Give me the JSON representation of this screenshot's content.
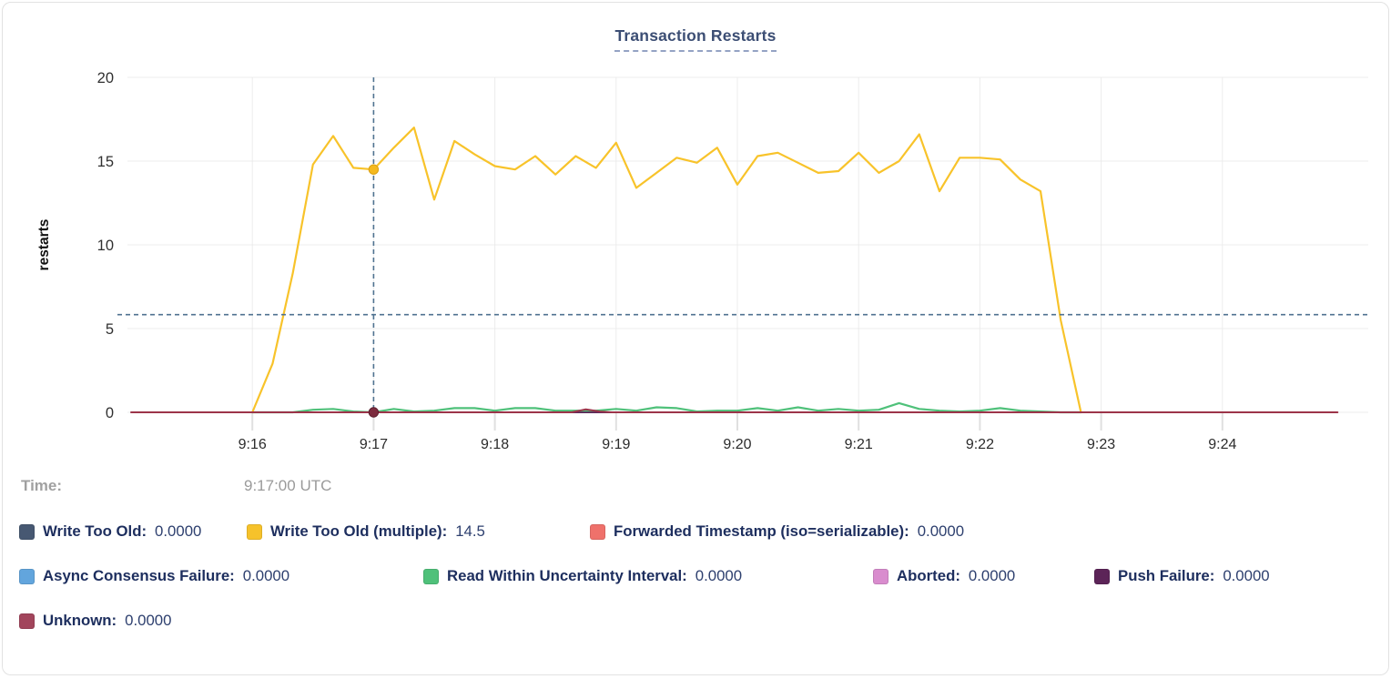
{
  "header": {
    "title": "Transaction Restarts"
  },
  "hover_panel": {
    "time_label": "Time:",
    "time_value": "9:17:00 UTC"
  },
  "chart_data": {
    "type": "line",
    "title": "Transaction Restarts",
    "ylabel": "restarts",
    "ylim": [
      0,
      20
    ],
    "y_ticks": [
      0,
      5,
      10,
      15,
      20
    ],
    "x_start": "9:15:00",
    "x_end": "9:25:00",
    "x_ticks": [
      "9:16",
      "9:17",
      "9:18",
      "9:19",
      "9:20",
      "9:21",
      "9:22",
      "9:23",
      "9:24"
    ],
    "grid": true,
    "legend_position": "bottom",
    "hover": {
      "time": "9:17:00",
      "cursor_value": 5.83,
      "dots": [
        {
          "series": "Write Too Old (multiple)",
          "value": 14.5,
          "fill": "#f5b91e",
          "stroke": "#dba114"
        },
        {
          "series": "Unknown",
          "value": 0,
          "fill": "#7c2b3e",
          "stroke": "#5c1e2e"
        }
      ]
    },
    "series": [
      {
        "name": "Write Too Old",
        "color": "#475872",
        "cursor_value": "0.0000",
        "data": [
          [
            "9:16:00",
            0
          ],
          [
            "9:22:50",
            0
          ]
        ]
      },
      {
        "name": "Forwarded Timestamp (iso=serializable)",
        "color": "#ef716b",
        "cursor_value": "0.0000",
        "data": [
          [
            "9:16:00",
            0
          ],
          [
            "9:22:50",
            0
          ]
        ]
      },
      {
        "name": "Async Consensus Failure",
        "color": "#62a5dd",
        "cursor_value": "0.0000",
        "data": [
          [
            "9:16:00",
            0
          ],
          [
            "9:22:50",
            0
          ]
        ]
      },
      {
        "name": "Aborted",
        "color": "#d98cce",
        "cursor_value": "0.0000",
        "data": [
          [
            "9:16:00",
            0
          ],
          [
            "9:22:50",
            0
          ]
        ]
      },
      {
        "name": "Push Failure",
        "color": "#5c2458",
        "cursor_value": "0.0000",
        "data": [
          [
            "9:16:00",
            0
          ],
          [
            "9:22:50",
            0
          ]
        ]
      },
      {
        "name": "Read Within Uncertainty Interval",
        "color": "#4fc17a",
        "cursor_value": "0.0000",
        "start": "9:16:00",
        "step_s": 10,
        "values": [
          0,
          0,
          0,
          0.15,
          0.2,
          0.05,
          0,
          0.2,
          0.05,
          0.1,
          0.25,
          0.25,
          0.1,
          0.25,
          0.25,
          0.1,
          0.1,
          0.1,
          0.2,
          0.1,
          0.3,
          0.25,
          0.05,
          0.1,
          0.1,
          0.25,
          0.1,
          0.3,
          0.1,
          0.2,
          0.1,
          0.15,
          0.55,
          0.2,
          0.1,
          0.05,
          0.1,
          0.25,
          0.1,
          0.05,
          0,
          0
        ]
      },
      {
        "name": "Write Too Old (multiple)",
        "color": "#f8c32a",
        "cursor_value": "14.5",
        "start": "9:16:00",
        "step_s": 10,
        "values": [
          0,
          2.9,
          8.3,
          14.8,
          16.5,
          14.6,
          14.5,
          15.8,
          17,
          12.7,
          16.2,
          15.4,
          14.7,
          14.5,
          15.3,
          14.2,
          15.3,
          14.6,
          16.1,
          13.4,
          14.3,
          15.2,
          14.9,
          15.8,
          13.6,
          15.3,
          15.5,
          14.9,
          14.3,
          14.4,
          15.5,
          14.3,
          15,
          16.6,
          13.2,
          15.2,
          15.2,
          15.1,
          13.9,
          13.2,
          5.5,
          0
        ]
      },
      {
        "name": "Unknown",
        "color": "#9c3449",
        "cursor_value": "0.0000",
        "data": [
          [
            "9:15:00",
            0
          ],
          [
            "9:18:38",
            0
          ],
          [
            "9:18:45",
            0.18
          ],
          [
            "9:18:52",
            0.05
          ],
          [
            "9:18:58",
            0
          ],
          [
            "9:24:57",
            0
          ]
        ]
      }
    ]
  },
  "legend": {
    "rows": [
      [
        {
          "label": "Write Too Old",
          "value": "0.0000",
          "color": "#475872"
        },
        {
          "label": "Write Too Old (multiple)",
          "value": "14.5",
          "color": "#f6c22b"
        },
        {
          "label": "Forwarded Timestamp (iso=serializable)",
          "value": "0.0000",
          "color": "#ef716b"
        }
      ],
      [
        {
          "label": "Async Consensus Failure",
          "value": "0.0000",
          "color": "#62a5dd"
        },
        {
          "label": "Read Within Uncertainty Interval",
          "value": "0.0000",
          "color": "#4fc17a"
        },
        {
          "label": "Aborted",
          "value": "0.0000",
          "color": "#d98cce"
        },
        {
          "label": "Push Failure",
          "value": "0.0000",
          "color": "#5c2458"
        }
      ],
      [
        {
          "label": "Unknown",
          "value": "0.0000",
          "color": "#a2455c"
        }
      ]
    ]
  }
}
